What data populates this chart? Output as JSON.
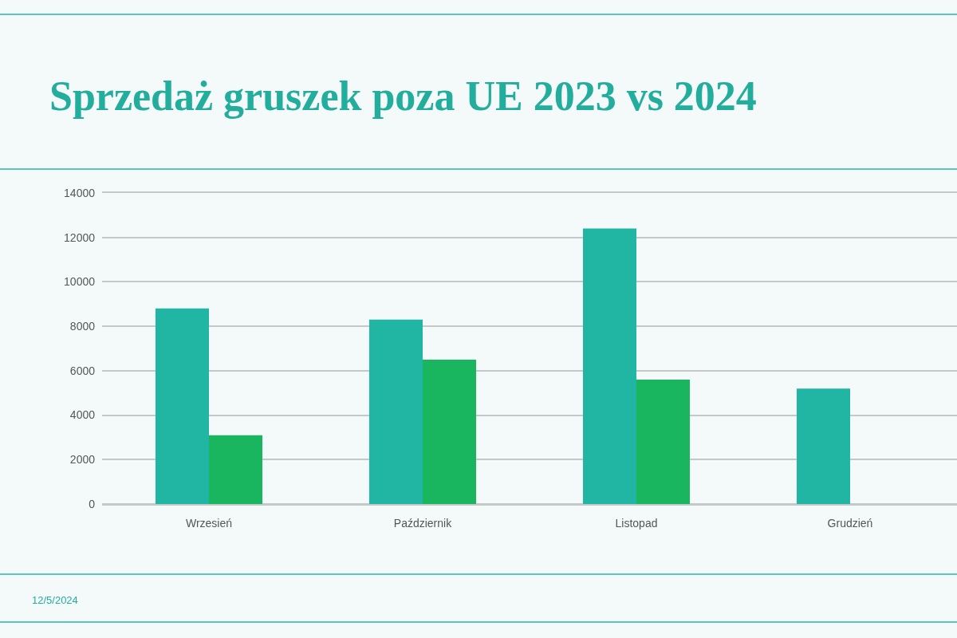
{
  "chart_data": {
    "type": "bar",
    "title": "Sprzedaż gruszek poza UE 2023 vs 2024",
    "categories": [
      "Wrzesień",
      "Październik",
      "Listopad",
      "Grudzień"
    ],
    "series": [
      {
        "color": "#21b5a3",
        "values": [
          8800,
          8300,
          12400,
          5200
        ]
      },
      {
        "color": "#19b55f",
        "values": [
          3100,
          6500,
          5600,
          null
        ]
      }
    ],
    "ylim": [
      0,
      14000
    ],
    "yticks": [
      0,
      2000,
      4000,
      6000,
      8000,
      10000,
      12000,
      14000
    ],
    "grid": "y",
    "annotations": [
      "12/5/2024"
    ]
  }
}
